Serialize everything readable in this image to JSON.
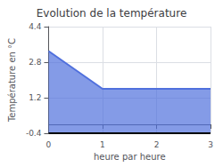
{
  "chart_data": {
    "type": "area",
    "title": "Evolution de la température",
    "xlabel": "heure par heure",
    "ylabel": "Température en °C",
    "x": [
      0,
      1,
      3
    ],
    "values": [
      3.3,
      1.6,
      1.6
    ],
    "baseline": -0.4,
    "xlim": [
      0,
      3
    ],
    "ylim": [
      -0.4,
      4.4
    ],
    "xticks": [
      0,
      1,
      2,
      3
    ],
    "yticks": [
      -0.4,
      1.2,
      2.8,
      4.4
    ],
    "grid": true
  }
}
